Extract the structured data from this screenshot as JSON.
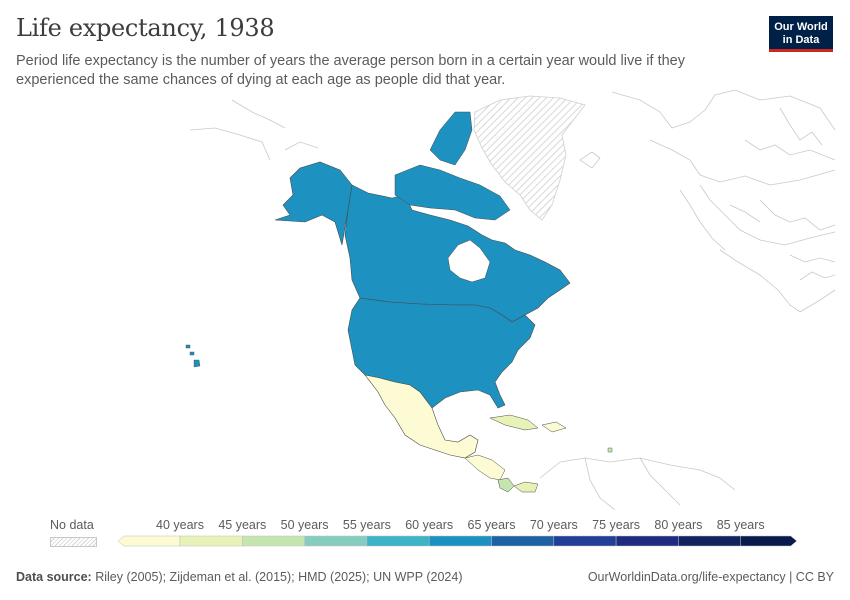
{
  "header": {
    "title": "Life expectancy, 1938",
    "subtitle": "Period life expectancy is the number of years the average person born in a certain year would live if they experienced the same chances of dying at each age as people did that year."
  },
  "logo": {
    "line1": "Our World",
    "line2": "in Data"
  },
  "legend": {
    "no_data_label": "No data",
    "ticks": [
      "40 years",
      "45 years",
      "50 years",
      "55 years",
      "60 years",
      "65 years",
      "70 years",
      "75 years",
      "80 years",
      "85 years"
    ],
    "bins": [
      {
        "range": "<40",
        "color": "#fcfbd3"
      },
      {
        "range": "40-45",
        "color": "#e6f2b6"
      },
      {
        "range": "45-50",
        "color": "#c5e5af"
      },
      {
        "range": "50-55",
        "color": "#86cdbf"
      },
      {
        "range": "55-60",
        "color": "#3fb3c6"
      },
      {
        "range": "60-65",
        "color": "#1d92c0"
      },
      {
        "range": "65-70",
        "color": "#1f62a4"
      },
      {
        "range": "70-75",
        "color": "#223f98"
      },
      {
        "range": "75-80",
        "color": "#1f2a80"
      },
      {
        "range": "80-85",
        "color": "#13215e"
      },
      {
        "range": ">85",
        "color": "#0a1a4d"
      }
    ]
  },
  "map_data": {
    "regions": [
      {
        "name": "Canada",
        "color": "#1d92c0"
      },
      {
        "name": "United States",
        "color": "#1d92c0"
      },
      {
        "name": "Mexico",
        "color": "#fcfbd3"
      },
      {
        "name": "Guatemala",
        "color": "#fcfbd3"
      },
      {
        "name": "Costa Rica",
        "color": "#c5e5af"
      },
      {
        "name": "Panama",
        "color": "#e6f2b6"
      },
      {
        "name": "Cuba",
        "color": "#e6f2b6"
      },
      {
        "name": "Greenland",
        "color": "no-data"
      }
    ]
  },
  "footer": {
    "source_label": "Data source:",
    "source_text": "Riley (2005); Zijdeman et al. (2015); HMD (2025); UN WPP (2024)",
    "url": "OurWorldinData.org/life-expectancy | CC BY"
  }
}
